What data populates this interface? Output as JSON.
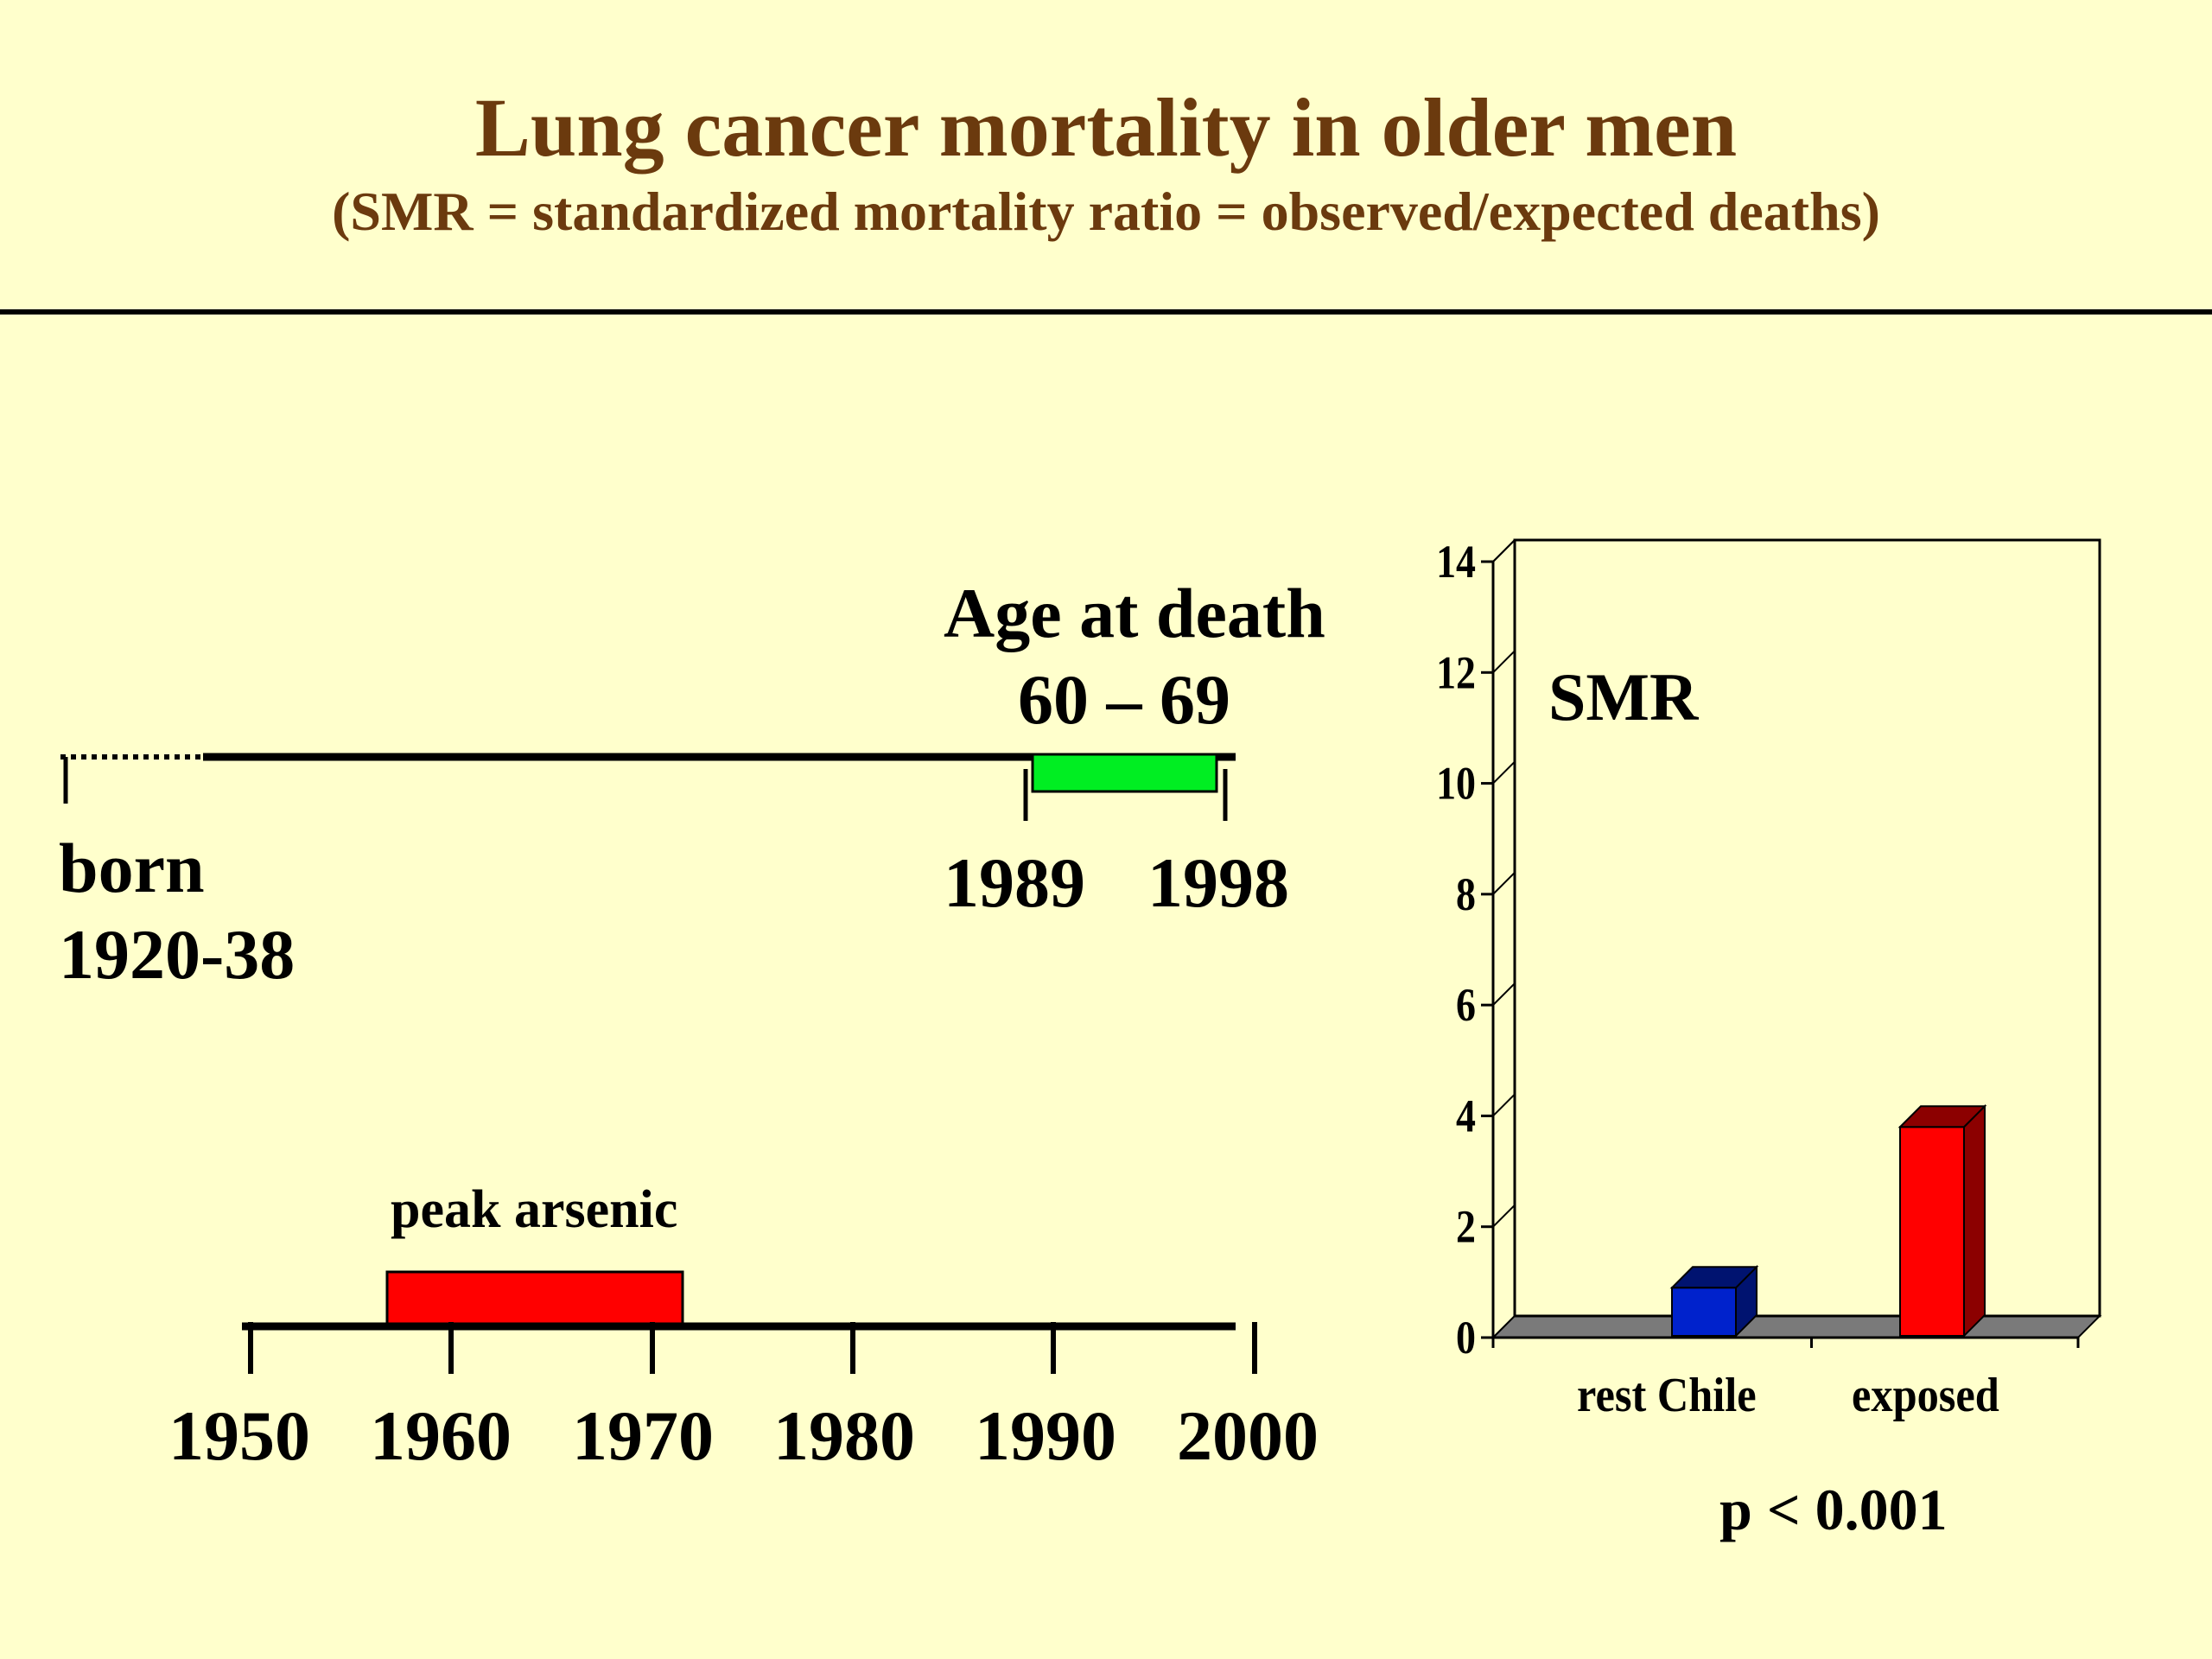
{
  "slide": {
    "title": "Lung cancer mortality in older men",
    "subtitle": "(SMR = standardized mortality ratio = observed/expected deaths)"
  },
  "timeline": {
    "born_label": "born",
    "born_years": "1920-38",
    "age_label": "Age at death",
    "age_range": "60 – 69",
    "death_start": "1989",
    "death_end": "1998",
    "peak_label": "peak arsenic",
    "axis_ticks": [
      "1950",
      "1960",
      "1970",
      "1980",
      "1990",
      "2000"
    ],
    "colors": {
      "death_window": "#00EE22",
      "peak_arsenic": "#FF0000"
    }
  },
  "chart_data": {
    "type": "bar",
    "title": "SMR",
    "categories": [
      "rest Chile",
      "exposed"
    ],
    "values": [
      0.9,
      3.8
    ],
    "ylim": [
      0,
      14
    ],
    "yticks": [
      0,
      2,
      4,
      6,
      8,
      10,
      12,
      14
    ],
    "grid": true,
    "colors": [
      "#0022CC",
      "#FF0000"
    ],
    "annotation": "p < 0.001"
  }
}
